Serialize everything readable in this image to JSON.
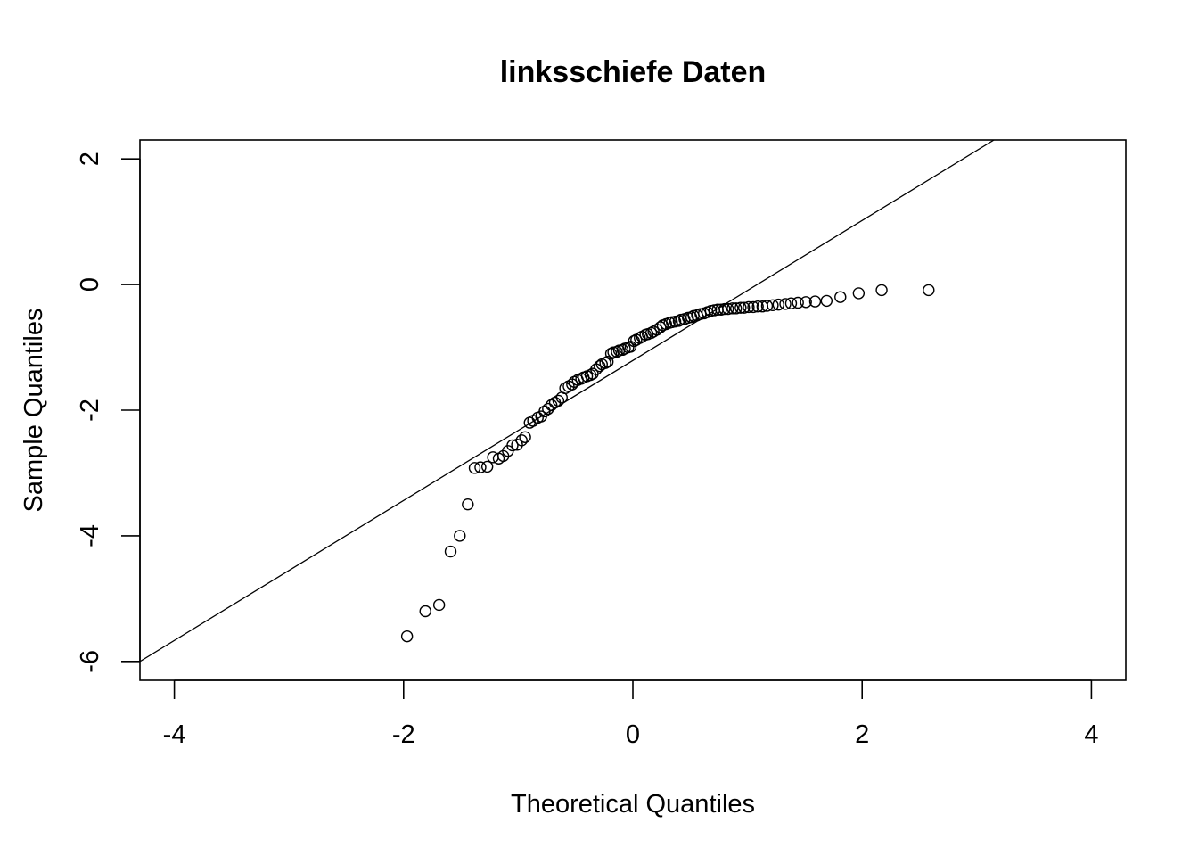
{
  "chart_data": {
    "type": "scatter",
    "title": "linksschiefe Daten",
    "xlabel": "Theoretical Quantiles",
    "ylabel": "Sample Quantiles",
    "xlim": [
      -4.3,
      4.3
    ],
    "ylim": [
      -6.3,
      2.3
    ],
    "x_ticks": [
      -4,
      -2,
      0,
      2,
      4
    ],
    "x_tick_labels": [
      "-4",
      "-2",
      "0",
      "2",
      "4"
    ],
    "y_ticks": [
      -6,
      -4,
      -2,
      0,
      2
    ],
    "y_tick_labels": [
      "-6",
      "-4",
      "-2",
      "0",
      "2"
    ],
    "grid": false,
    "reference_line": {
      "x": [
        -4.3,
        3.15
      ],
      "y": [
        -6.0,
        2.3
      ]
    },
    "points": [
      [
        -1.97,
        -5.6
      ],
      [
        -1.81,
        -5.2
      ],
      [
        -1.69,
        -5.1
      ],
      [
        -1.59,
        -4.25
      ],
      [
        -1.51,
        -4.0
      ],
      [
        -1.44,
        -3.5
      ],
      [
        -1.38,
        -2.92
      ],
      [
        -1.33,
        -2.91
      ],
      [
        -1.27,
        -2.9
      ],
      [
        -1.22,
        -2.75
      ],
      [
        -1.17,
        -2.77
      ],
      [
        -1.13,
        -2.73
      ],
      [
        -1.09,
        -2.65
      ],
      [
        -1.05,
        -2.56
      ],
      [
        -1.01,
        -2.55
      ],
      [
        -0.97,
        -2.48
      ],
      [
        -0.94,
        -2.43
      ],
      [
        -0.9,
        -2.2
      ],
      [
        -0.87,
        -2.17
      ],
      [
        -0.83,
        -2.12
      ],
      [
        -0.8,
        -2.1
      ],
      [
        -0.77,
        -2.02
      ],
      [
        -0.74,
        -1.98
      ],
      [
        -0.71,
        -1.92
      ],
      [
        -0.68,
        -1.88
      ],
      [
        -0.65,
        -1.85
      ],
      [
        -0.62,
        -1.8
      ],
      [
        -0.59,
        -1.65
      ],
      [
        -0.56,
        -1.62
      ],
      [
        -0.53,
        -1.59
      ],
      [
        -0.51,
        -1.55
      ],
      [
        -0.48,
        -1.52
      ],
      [
        -0.45,
        -1.5
      ],
      [
        -0.43,
        -1.48
      ],
      [
        -0.4,
        -1.46
      ],
      [
        -0.37,
        -1.44
      ],
      [
        -0.35,
        -1.42
      ],
      [
        -0.32,
        -1.35
      ],
      [
        -0.29,
        -1.3
      ],
      [
        -0.27,
        -1.27
      ],
      [
        -0.24,
        -1.25
      ],
      [
        -0.22,
        -1.23
      ],
      [
        -0.19,
        -1.1
      ],
      [
        -0.17,
        -1.08
      ],
      [
        -0.14,
        -1.07
      ],
      [
        -0.12,
        -1.05
      ],
      [
        -0.09,
        -1.04
      ],
      [
        -0.07,
        -1.02
      ],
      [
        -0.04,
        -1.0
      ],
      [
        -0.02,
        -0.99
      ],
      [
        0.01,
        -0.9
      ],
      [
        0.03,
        -0.88
      ],
      [
        0.06,
        -0.85
      ],
      [
        0.08,
        -0.83
      ],
      [
        0.11,
        -0.8
      ],
      [
        0.13,
        -0.79
      ],
      [
        0.16,
        -0.77
      ],
      [
        0.18,
        -0.75
      ],
      [
        0.21,
        -0.72
      ],
      [
        0.24,
        -0.68
      ],
      [
        0.26,
        -0.65
      ],
      [
        0.29,
        -0.63
      ],
      [
        0.32,
        -0.61
      ],
      [
        0.34,
        -0.6
      ],
      [
        0.37,
        -0.59
      ],
      [
        0.4,
        -0.58
      ],
      [
        0.42,
        -0.56
      ],
      [
        0.45,
        -0.55
      ],
      [
        0.48,
        -0.53
      ],
      [
        0.51,
        -0.52
      ],
      [
        0.53,
        -0.5
      ],
      [
        0.56,
        -0.49
      ],
      [
        0.59,
        -0.47
      ],
      [
        0.62,
        -0.46
      ],
      [
        0.65,
        -0.44
      ],
      [
        0.68,
        -0.42
      ],
      [
        0.71,
        -0.41
      ],
      [
        0.74,
        -0.4
      ],
      [
        0.77,
        -0.4
      ],
      [
        0.8,
        -0.39
      ],
      [
        0.83,
        -0.39
      ],
      [
        0.87,
        -0.38
      ],
      [
        0.9,
        -0.38
      ],
      [
        0.94,
        -0.37
      ],
      [
        0.97,
        -0.37
      ],
      [
        1.01,
        -0.36
      ],
      [
        1.05,
        -0.36
      ],
      [
        1.09,
        -0.35
      ],
      [
        1.13,
        -0.35
      ],
      [
        1.17,
        -0.34
      ],
      [
        1.22,
        -0.33
      ],
      [
        1.27,
        -0.32
      ],
      [
        1.33,
        -0.31
      ],
      [
        1.38,
        -0.3
      ],
      [
        1.44,
        -0.29
      ],
      [
        1.51,
        -0.28
      ],
      [
        1.59,
        -0.27
      ],
      [
        1.69,
        -0.26
      ],
      [
        1.81,
        -0.2
      ],
      [
        1.97,
        -0.14
      ],
      [
        2.17,
        -0.09
      ],
      [
        2.58,
        -0.09
      ]
    ]
  }
}
